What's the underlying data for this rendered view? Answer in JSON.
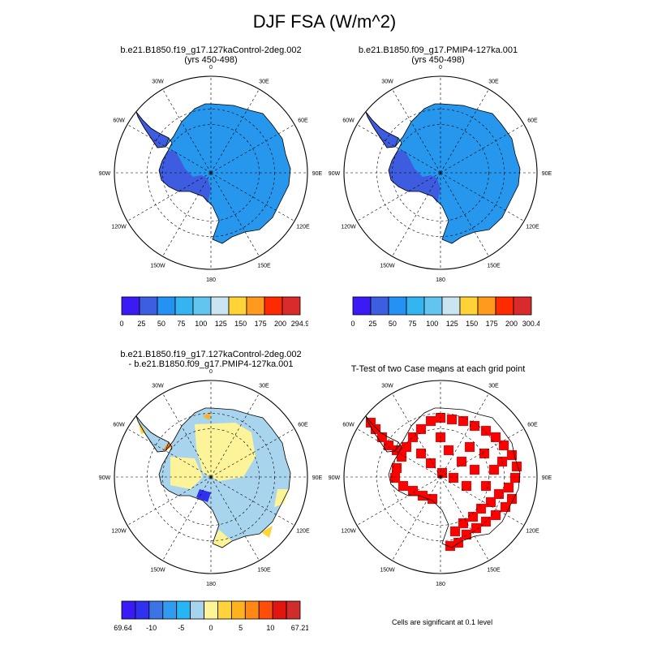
{
  "title": "DJF FSA (W/m^2)",
  "colors": {
    "abs_levels": [
      "#3a1bf5",
      "#3d5ee0",
      "#2492f5",
      "#34b4f0",
      "#62c4f0",
      "#cbe4f1",
      "#ffd237",
      "#ff9a1e",
      "#ff2a00",
      "#d92b2b"
    ],
    "diff_levels": [
      "#3a1bf5",
      "#3030f0",
      "#3c74e6",
      "#2f9cf2",
      "#26b6f3",
      "#a6d3ee",
      "#fdf49a",
      "#ffd33a",
      "#ffb21f",
      "#ff8814",
      "#ff4d0a",
      "#e3160f",
      "#d12c2c"
    ],
    "signif": "#ff0000",
    "ice_base": "#2797ee",
    "west_dark": "#3e5ce0"
  },
  "grid_labels": [
    "0",
    "30E",
    "60E",
    "90E",
    "120E",
    "150E",
    "180",
    "150W",
    "120W",
    "90W",
    "60W",
    "30W"
  ],
  "panels": [
    {
      "id": "p1",
      "title_line1": "b.e21.B1850.f19_g17.127kaControl-2deg.002",
      "title_line2": "(yrs 450-498)",
      "labelbar": [
        "0",
        "25",
        "50",
        "75",
        "100",
        "125",
        "150",
        "175",
        "200",
        "294.9"
      ]
    },
    {
      "id": "p2",
      "title_line1": "b.e21.B1850.f09_g17.PMIP4-127ka.001",
      "title_line2": "(yrs 450-498)",
      "labelbar": [
        "0",
        "25",
        "50",
        "75",
        "100",
        "125",
        "150",
        "175",
        "200",
        "300.4"
      ]
    },
    {
      "id": "p3",
      "title_line1": "b.e21.B1850.f19_g17.127kaControl-2deg.002",
      "title_line2": "- b.e21.B1850.f09_g17.PMIP4-127ka.001",
      "labelbar": [
        "-69.64",
        "-10",
        "-5",
        "0",
        "5",
        "10",
        "67.21"
      ]
    },
    {
      "id": "p4",
      "title_line1": "T-Test of two Case means at each grid point",
      "note": "Cells are significant at 0.1 level"
    }
  ]
}
